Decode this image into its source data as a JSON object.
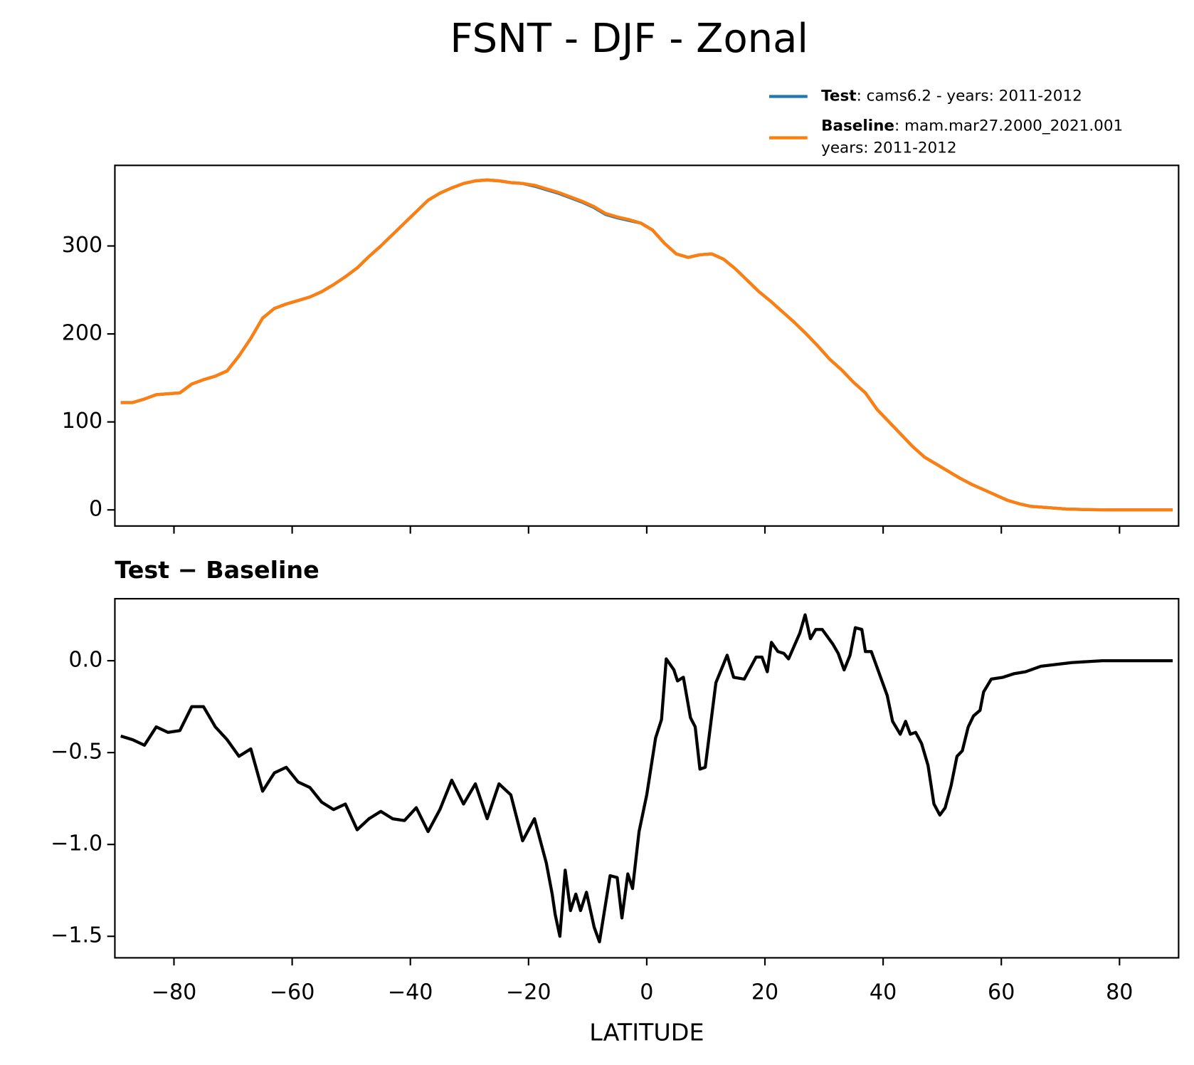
{
  "title": "FSNT - DJF - Zonal",
  "chart_data": [
    {
      "type": "line",
      "x": [
        -89,
        -87,
        -85,
        -83,
        -81,
        -79,
        -77,
        -75,
        -73,
        -71,
        -69,
        -67,
        -65,
        -63,
        -61,
        -59,
        -57,
        -55,
        -53,
        -51,
        -49,
        -47,
        -45,
        -43,
        -41,
        -39,
        -37,
        -35,
        -33,
        -31,
        -29,
        -27,
        -25,
        -23,
        -21,
        -19,
        -17,
        -15,
        -13,
        -11,
        -9,
        -7,
        -5,
        -3,
        -1,
        1,
        3,
        5,
        7,
        9,
        11,
        13,
        15,
        17,
        19,
        21,
        23,
        25,
        27,
        29,
        31,
        33,
        35,
        37,
        39,
        41,
        43,
        45,
        47,
        49,
        51,
        53,
        55,
        57,
        59,
        61,
        63,
        65,
        67,
        69,
        71,
        73,
        75,
        77,
        79,
        81,
        83,
        85,
        87,
        89
      ],
      "series": [
        {
          "name": "Test",
          "legend_lines": [
            ": cams6.2 - years: 2011-2012"
          ],
          "color": "#1f77b4",
          "values": [
            122,
            122,
            126,
            131,
            132,
            133,
            143,
            148,
            152,
            158,
            175,
            195,
            218,
            229,
            234,
            238,
            242,
            248,
            256,
            265,
            275,
            288,
            300,
            313,
            326,
            339,
            352,
            360,
            366,
            371,
            374,
            375,
            374,
            372,
            371,
            368,
            364,
            360,
            355,
            350,
            344,
            336,
            332,
            329,
            326,
            318,
            303,
            291,
            287,
            290,
            291,
            285,
            274,
            261,
            248,
            237,
            225,
            213,
            200,
            186,
            171,
            159,
            145,
            133,
            114,
            100,
            86,
            72,
            60,
            52,
            44,
            36,
            29,
            23,
            17,
            11,
            7,
            4,
            3,
            2,
            1,
            0.6,
            0.3,
            0.1,
            0,
            0,
            0,
            0,
            0,
            0
          ]
        },
        {
          "name": "Baseline",
          "legend_lines": [
            ": mam.mar27.2000_2021.001",
            "years: 2011-2012"
          ],
          "color": "#ff7f0e",
          "values": [
            122,
            122,
            126,
            131,
            132,
            133,
            143,
            148,
            152,
            158,
            175,
            195,
            218,
            229,
            234,
            238,
            242,
            248,
            256,
            265,
            275,
            288,
            300,
            313,
            326,
            339,
            352,
            360,
            366,
            371,
            374,
            375,
            374,
            372,
            371,
            369,
            365,
            361,
            356,
            351,
            345,
            337,
            333,
            330,
            326,
            318,
            303,
            291,
            287,
            290,
            291,
            285,
            274,
            261,
            248,
            237,
            225,
            213,
            200,
            186,
            171,
            159,
            145,
            133,
            114,
            100,
            86,
            72,
            60,
            52,
            44,
            36,
            29,
            23,
            17,
            11,
            7,
            4,
            3,
            2,
            1,
            0.6,
            0.3,
            0.1,
            0,
            0,
            0,
            0,
            0,
            0
          ]
        }
      ],
      "xlim": [
        -90,
        90
      ],
      "xticks": [
        -80,
        -60,
        -40,
        -20,
        0,
        20,
        40,
        60,
        80
      ],
      "xticklabels": false,
      "ylim": [
        -18.3,
        391.6
      ],
      "yticks": [
        0,
        100,
        200,
        300
      ],
      "legend": "upper right"
    },
    {
      "type": "line",
      "title": "Test − Baseline",
      "xlabel": "LATITUDE",
      "x": [
        -89,
        -87,
        -85,
        -83,
        -81,
        -79,
        -77,
        -75,
        -73,
        -71,
        -69,
        -67,
        -65,
        -63,
        -61,
        -59,
        -57,
        -55,
        -53,
        -51,
        -49,
        -47,
        -45,
        -43,
        -41,
        -39,
        -37,
        -35,
        -33,
        -31,
        -29,
        -27,
        -25,
        -23,
        -21,
        -19,
        -17,
        -16,
        -15.5,
        -14.7,
        -13.8,
        -12.9,
        -12,
        -11.2,
        -10.2,
        -8.9,
        -8,
        -6.2,
        -5,
        -4.2,
        -3.2,
        -2.4,
        -1.3,
        0,
        1.5,
        2.5,
        3.3,
        4.6,
        5.2,
        6.2,
        7.4,
        8.2,
        9,
        9.9,
        11.7,
        13.6,
        14.7,
        16.5,
        18.5,
        19.5,
        20.4,
        21.1,
        22.2,
        23.2,
        24,
        25.9,
        26.8,
        27.7,
        28.6,
        29.7,
        31.5,
        32.4,
        33.4,
        34.4,
        35.3,
        36.4,
        37,
        38,
        39.8,
        40.7,
        41.6,
        42.9,
        43.8,
        44.6,
        45.5,
        46.5,
        47.6,
        48.6,
        49.6,
        50.5,
        51.5,
        52.5,
        53.4,
        54.4,
        55.3,
        56.4,
        57,
        58.3,
        60.3,
        62.2,
        64.1,
        66.7,
        71.9,
        77.1,
        89
      ],
      "series": [
        {
          "color": "#000000",
          "values": [
            -0.41,
            -0.43,
            -0.46,
            -0.36,
            -0.39,
            -0.38,
            -0.25,
            -0.25,
            -0.36,
            -0.43,
            -0.52,
            -0.48,
            -0.71,
            -0.61,
            -0.58,
            -0.66,
            -0.69,
            -0.77,
            -0.81,
            -0.78,
            -0.92,
            -0.86,
            -0.82,
            -0.86,
            -0.87,
            -0.8,
            -0.93,
            -0.81,
            -0.65,
            -0.78,
            -0.67,
            -0.86,
            -0.67,
            -0.73,
            -0.98,
            -0.86,
            -1.1,
            -1.27,
            -1.38,
            -1.5,
            -1.14,
            -1.36,
            -1.27,
            -1.36,
            -1.26,
            -1.45,
            -1.53,
            -1.17,
            -1.18,
            -1.4,
            -1.16,
            -1.24,
            -0.93,
            -0.73,
            -0.42,
            -0.32,
            0.01,
            -0.05,
            -0.11,
            -0.09,
            -0.31,
            -0.36,
            -0.59,
            -0.58,
            -0.12,
            0.03,
            -0.09,
            -0.1,
            0.02,
            0.02,
            -0.06,
            0.1,
            0.05,
            0.04,
            0.01,
            0.15,
            0.25,
            0.12,
            0.17,
            0.17,
            0.09,
            0.04,
            -0.05,
            0.03,
            0.18,
            0.17,
            0.05,
            0.05,
            -0.11,
            -0.19,
            -0.33,
            -0.4,
            -0.33,
            -0.4,
            -0.39,
            -0.45,
            -0.57,
            -0.78,
            -0.84,
            -0.8,
            -0.68,
            -0.52,
            -0.49,
            -0.36,
            -0.3,
            -0.27,
            -0.17,
            -0.1,
            -0.09,
            -0.07,
            -0.06,
            -0.03,
            -0.01,
            0,
            0
          ]
        }
      ],
      "xlim": [
        -90,
        90
      ],
      "xticks": [
        {
          "value": -80,
          "label": "−80"
        },
        {
          "value": -60,
          "label": "−60"
        },
        {
          "value": -40,
          "label": "−40"
        },
        {
          "value": -20,
          "label": "−20"
        },
        0,
        20,
        40,
        60,
        80
      ],
      "ylim": [
        -1.617,
        0.3375
      ],
      "yticks": [
        {
          "value": -1.5,
          "label": "−1.5"
        },
        {
          "value": -1.0,
          "label": "−1.0"
        },
        {
          "value": -0.5,
          "label": "−0.5"
        },
        {
          "value": 0,
          "label": "0.0"
        }
      ]
    }
  ]
}
